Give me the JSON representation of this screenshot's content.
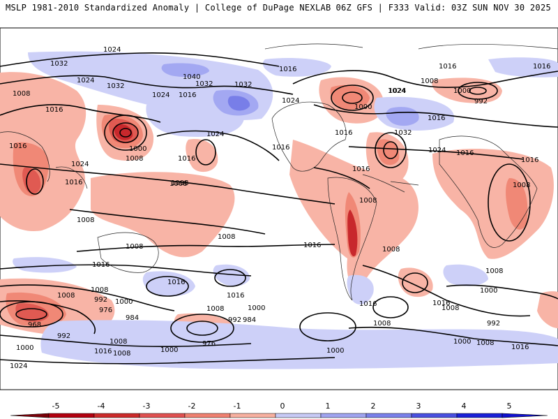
{
  "header": {
    "left": "MSLP 1981-2010 Standardized Anomaly | College of DuPage NEXLAB",
    "right": "06Z GFS | F333 Valid: 03Z SUN NOV 30 2025"
  },
  "colorbar": {
    "ticks": [
      "-5",
      "-4",
      "-3",
      "-2",
      "-1",
      "0",
      "1",
      "2",
      "3",
      "4",
      "5"
    ],
    "colors": [
      "#b2000f",
      "#cc2a2a",
      "#e05050",
      "#f08070",
      "#f8b0a0",
      "#ffffff",
      "#c8caf6",
      "#a0a4f0",
      "#7a80ea",
      "#4a50e0",
      "#1a20d8"
    ]
  },
  "palette": {
    "neg1": "#f8b4a6",
    "neg2": "#f08876",
    "neg3": "#e05a52",
    "neg4": "#c8282c",
    "pos1": "#cdd0f8",
    "pos2": "#a3a8f2",
    "pos3": "#787ee8"
  },
  "isobar_labels": [
    "1024",
    "1032",
    "1024",
    "1032",
    "1008",
    "1016",
    "1016",
    "1024",
    "1016",
    "1008",
    "1008",
    "1008",
    "1008",
    "1016",
    "1016",
    "1008",
    "992",
    "1000",
    "1008",
    "976",
    "968",
    "984",
    "992",
    "1000",
    "1008",
    "1016",
    "1008",
    "1000",
    "1024",
    "1040",
    "1032",
    "1024",
    "1016",
    "1032",
    "1024",
    "1024",
    "1016",
    "1000",
    "1008",
    "1016",
    "1008",
    "1008",
    "1016",
    "1016",
    "992",
    "984",
    "976",
    "1000",
    "1000",
    "1008",
    "1016",
    "1024",
    "1016",
    "1032",
    "1024",
    "1016",
    "1016",
    "1008",
    "1016",
    "1008",
    "1016",
    "1000",
    "1016",
    "992",
    "1008",
    "1008",
    "1016",
    "1000",
    "1024",
    "1008",
    "1016",
    "1000",
    "1016",
    "1008",
    "992",
    "1000",
    "1008",
    "1016"
  ]
}
